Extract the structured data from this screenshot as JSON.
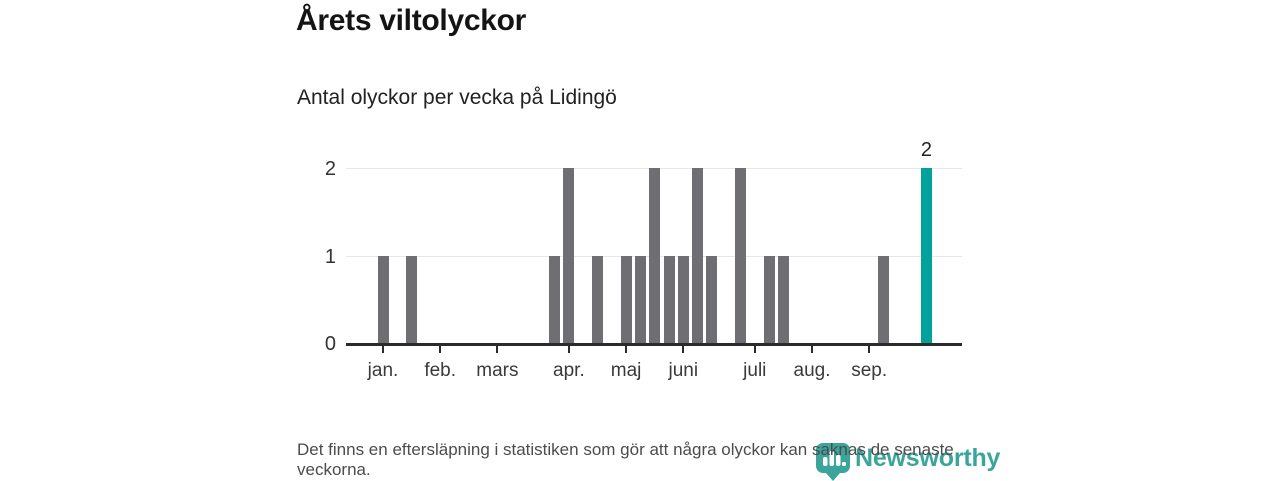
{
  "header": {
    "title": "Årets viltolyckor",
    "subtitle": "Antal olyckor per vecka på Lidingö"
  },
  "chart_data": {
    "type": "bar",
    "title": "Årets viltolyckor",
    "subtitle": "Antal olyckor per vecka på Lidingö",
    "x_unit": "week_of_year",
    "ylim": [
      0,
      2
    ],
    "y_ticks": [
      0,
      1,
      2
    ],
    "grid": "horizontal",
    "legend": "none",
    "bar_color": "#6e6e73",
    "highlight_color": "#00a29b",
    "month_ticks": [
      {
        "label": "jan.",
        "week": 1
      },
      {
        "label": "feb.",
        "week": 5
      },
      {
        "label": "mars",
        "week": 9
      },
      {
        "label": "apr.",
        "week": 14
      },
      {
        "label": "maj",
        "week": 18
      },
      {
        "label": "juni",
        "week": 22
      },
      {
        "label": "juli",
        "week": 27
      },
      {
        "label": "aug.",
        "week": 31
      },
      {
        "label": "sep.",
        "week": 35
      }
    ],
    "points": [
      {
        "week": 1,
        "value": 1
      },
      {
        "week": 3,
        "value": 1
      },
      {
        "week": 13,
        "value": 1
      },
      {
        "week": 14,
        "value": 2
      },
      {
        "week": 16,
        "value": 1
      },
      {
        "week": 18,
        "value": 1
      },
      {
        "week": 19,
        "value": 1
      },
      {
        "week": 20,
        "value": 2
      },
      {
        "week": 21,
        "value": 1
      },
      {
        "week": 22,
        "value": 1
      },
      {
        "week": 23,
        "value": 2
      },
      {
        "week": 24,
        "value": 1
      },
      {
        "week": 26,
        "value": 2
      },
      {
        "week": 28,
        "value": 1
      },
      {
        "week": 29,
        "value": 1
      },
      {
        "week": 36,
        "value": 1
      },
      {
        "week": 39,
        "value": 2,
        "highlight": true,
        "label": "2"
      }
    ]
  },
  "footer": {
    "note": "Det finns en eftersläpning i statistiken som gör att några olyckor kan saknas de senaste veckorna."
  },
  "logo": {
    "text": "Newsworthy",
    "icon": "newsworthy-pin-icon",
    "color": "#2d9f95"
  },
  "colors": {
    "bar": "#6e6e73",
    "highlight": "#00a29b",
    "grid": "#e7e7e7",
    "axis": "#2b2b2b",
    "note_text": "#4c4c4c",
    "brand_teal": "#2d9f95"
  }
}
